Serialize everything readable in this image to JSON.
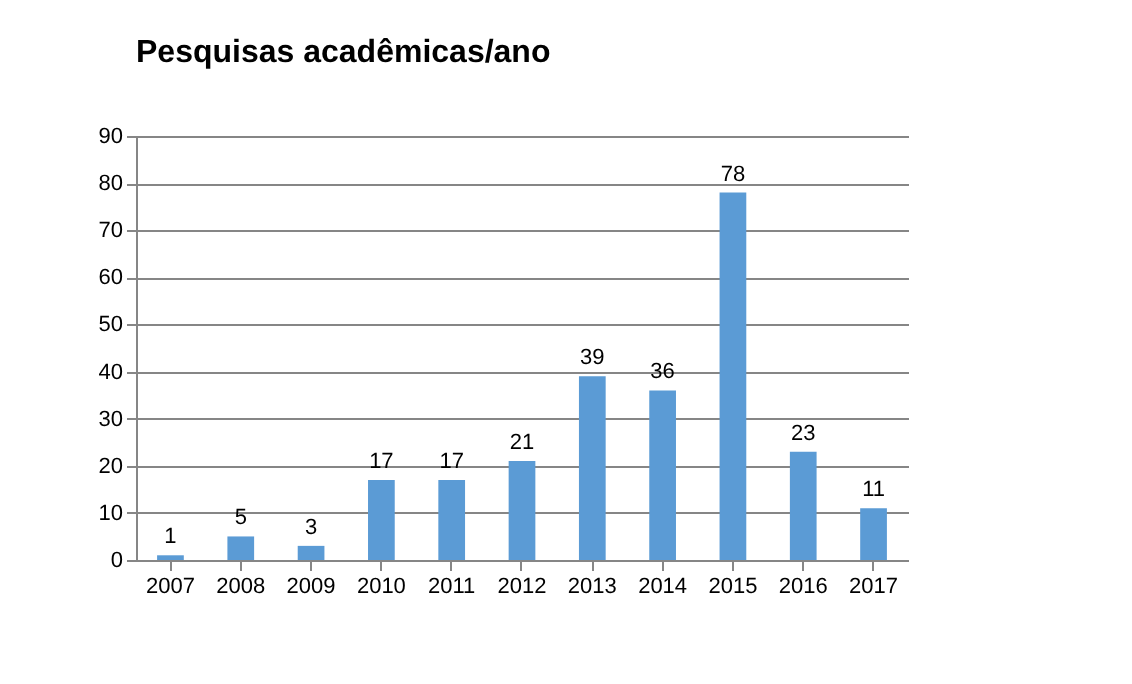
{
  "chart_data": {
    "type": "bar",
    "title": "Pesquisas acadêmicas/ano",
    "categories": [
      "2007",
      "2008",
      "2009",
      "2010",
      "2011",
      "2012",
      "2013",
      "2014",
      "2015",
      "2016",
      "2017"
    ],
    "values": [
      1,
      5,
      3,
      17,
      17,
      21,
      39,
      36,
      78,
      23,
      11
    ],
    "color": "#5b9bd5",
    "ylim": [
      0,
      90
    ],
    "yticks": [
      0,
      10,
      20,
      30,
      40,
      50,
      60,
      70,
      80,
      90
    ],
    "grid": "y",
    "data_labels": true
  }
}
